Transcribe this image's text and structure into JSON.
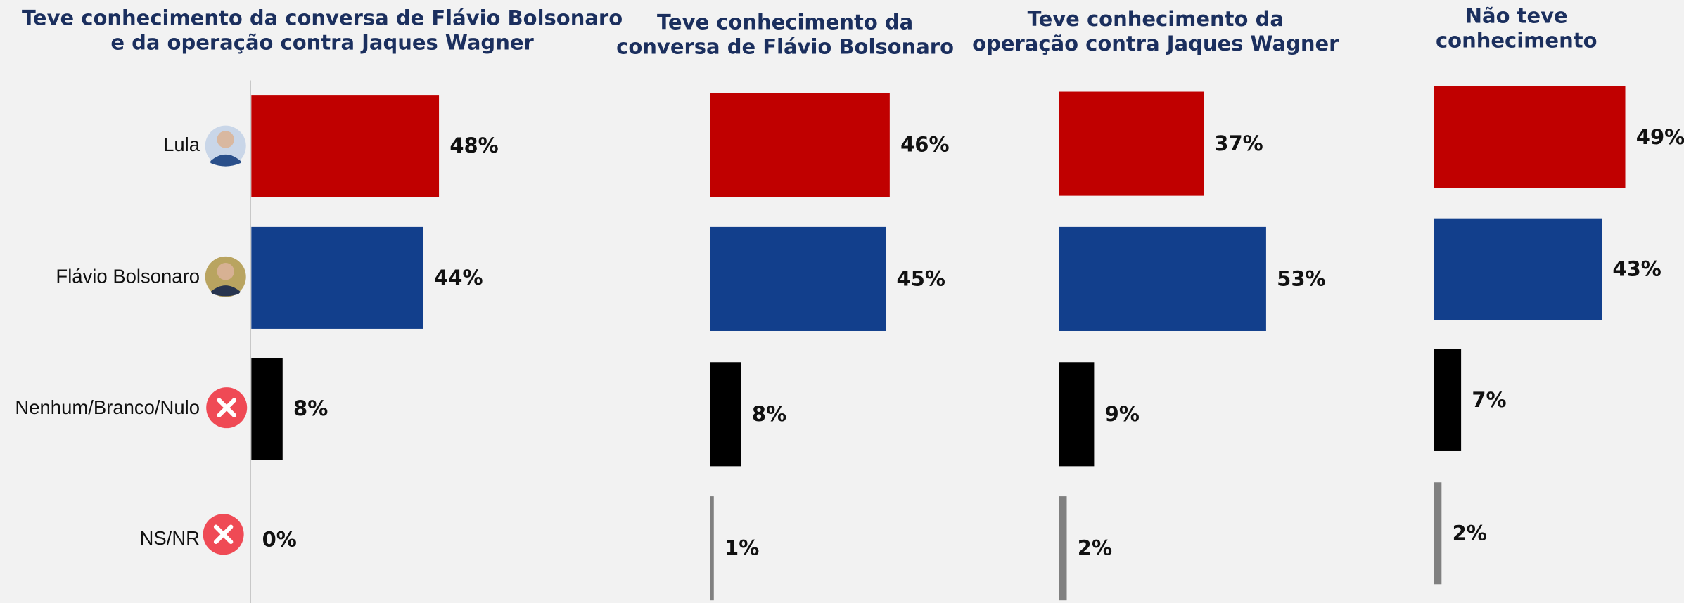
{
  "chart_data": [
    {
      "type": "bar",
      "orientation": "horizontal",
      "title": [
        "Teve conhecimento da conversa de Flávio Bolsonaro",
        "e da operação contra Jaques Wagner"
      ],
      "categories": [
        "Lula",
        "Flávio Bolsonaro",
        "Nenhum/Branco/Nulo",
        "NS/NR"
      ],
      "values": [
        48,
        44,
        8,
        0
      ],
      "value_labels": [
        "48%",
        "44%",
        "8%",
        "0%"
      ],
      "colors": [
        "#c00000",
        "#123f8c",
        "#000000",
        "#808080"
      ]
    },
    {
      "type": "bar",
      "orientation": "horizontal",
      "title": [
        "Teve conhecimento da",
        "conversa de Flávio Bolsonaro"
      ],
      "categories": [
        null,
        null,
        null,
        null
      ],
      "values": [
        46,
        45,
        8,
        1
      ],
      "value_labels": [
        "46%",
        "45%",
        "8%",
        "1%"
      ],
      "colors": [
        "#c00000",
        "#123f8c",
        "#000000",
        "#808080"
      ]
    },
    {
      "type": "bar",
      "orientation": "horizontal",
      "title": [
        "Teve conhecimento da",
        "operação contra Jaques Wagner"
      ],
      "categories": [
        null,
        null,
        null,
        null
      ],
      "values": [
        37,
        53,
        9,
        2
      ],
      "value_labels": [
        "37%",
        "53%",
        "9%",
        "2%"
      ],
      "colors": [
        "#c00000",
        "#123f8c",
        "#000000",
        "#808080"
      ]
    },
    {
      "type": "bar",
      "orientation": "horizontal",
      "title": [
        "Não teve",
        "conhecimento"
      ],
      "categories": [
        null,
        null,
        null,
        null
      ],
      "values": [
        49,
        43,
        7,
        2
      ],
      "value_labels": [
        "49%",
        "43%",
        "7%",
        "2%"
      ],
      "colors": [
        "#c00000",
        "#123f8c",
        "#000000",
        "#808080"
      ]
    }
  ]
}
